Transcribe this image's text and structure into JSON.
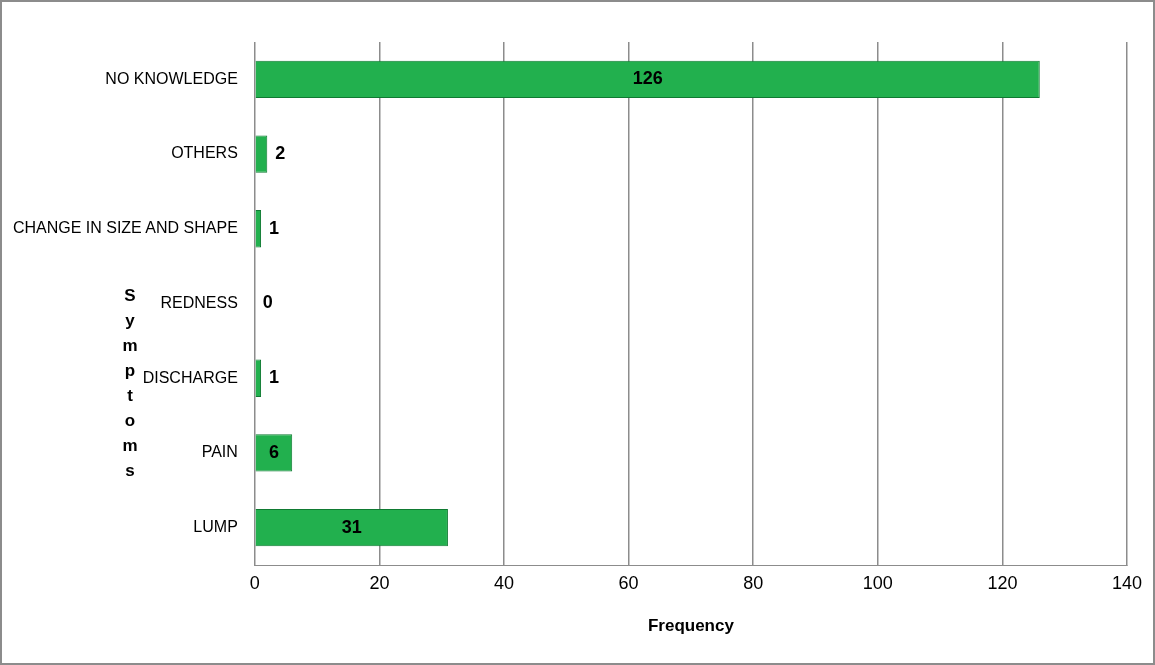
{
  "chart_data": {
    "type": "bar",
    "orientation": "horizontal",
    "xlabel": "Frequency",
    "ylabel": "Symptoms",
    "categories": [
      "NO KNOWLEDGE",
      "OTHERS",
      "CHANGE IN SIZE AND SHAPE",
      "REDNESS",
      "DISCHARGE",
      "PAIN",
      "LUMP"
    ],
    "values": [
      126,
      2,
      1,
      0,
      1,
      6,
      31
    ],
    "color": "#22b04e",
    "xlim": [
      0,
      140
    ],
    "xticks": [
      0,
      20,
      40,
      60,
      80,
      100,
      120,
      140
    ],
    "grid": "x",
    "legend": false,
    "data_labels": true
  }
}
